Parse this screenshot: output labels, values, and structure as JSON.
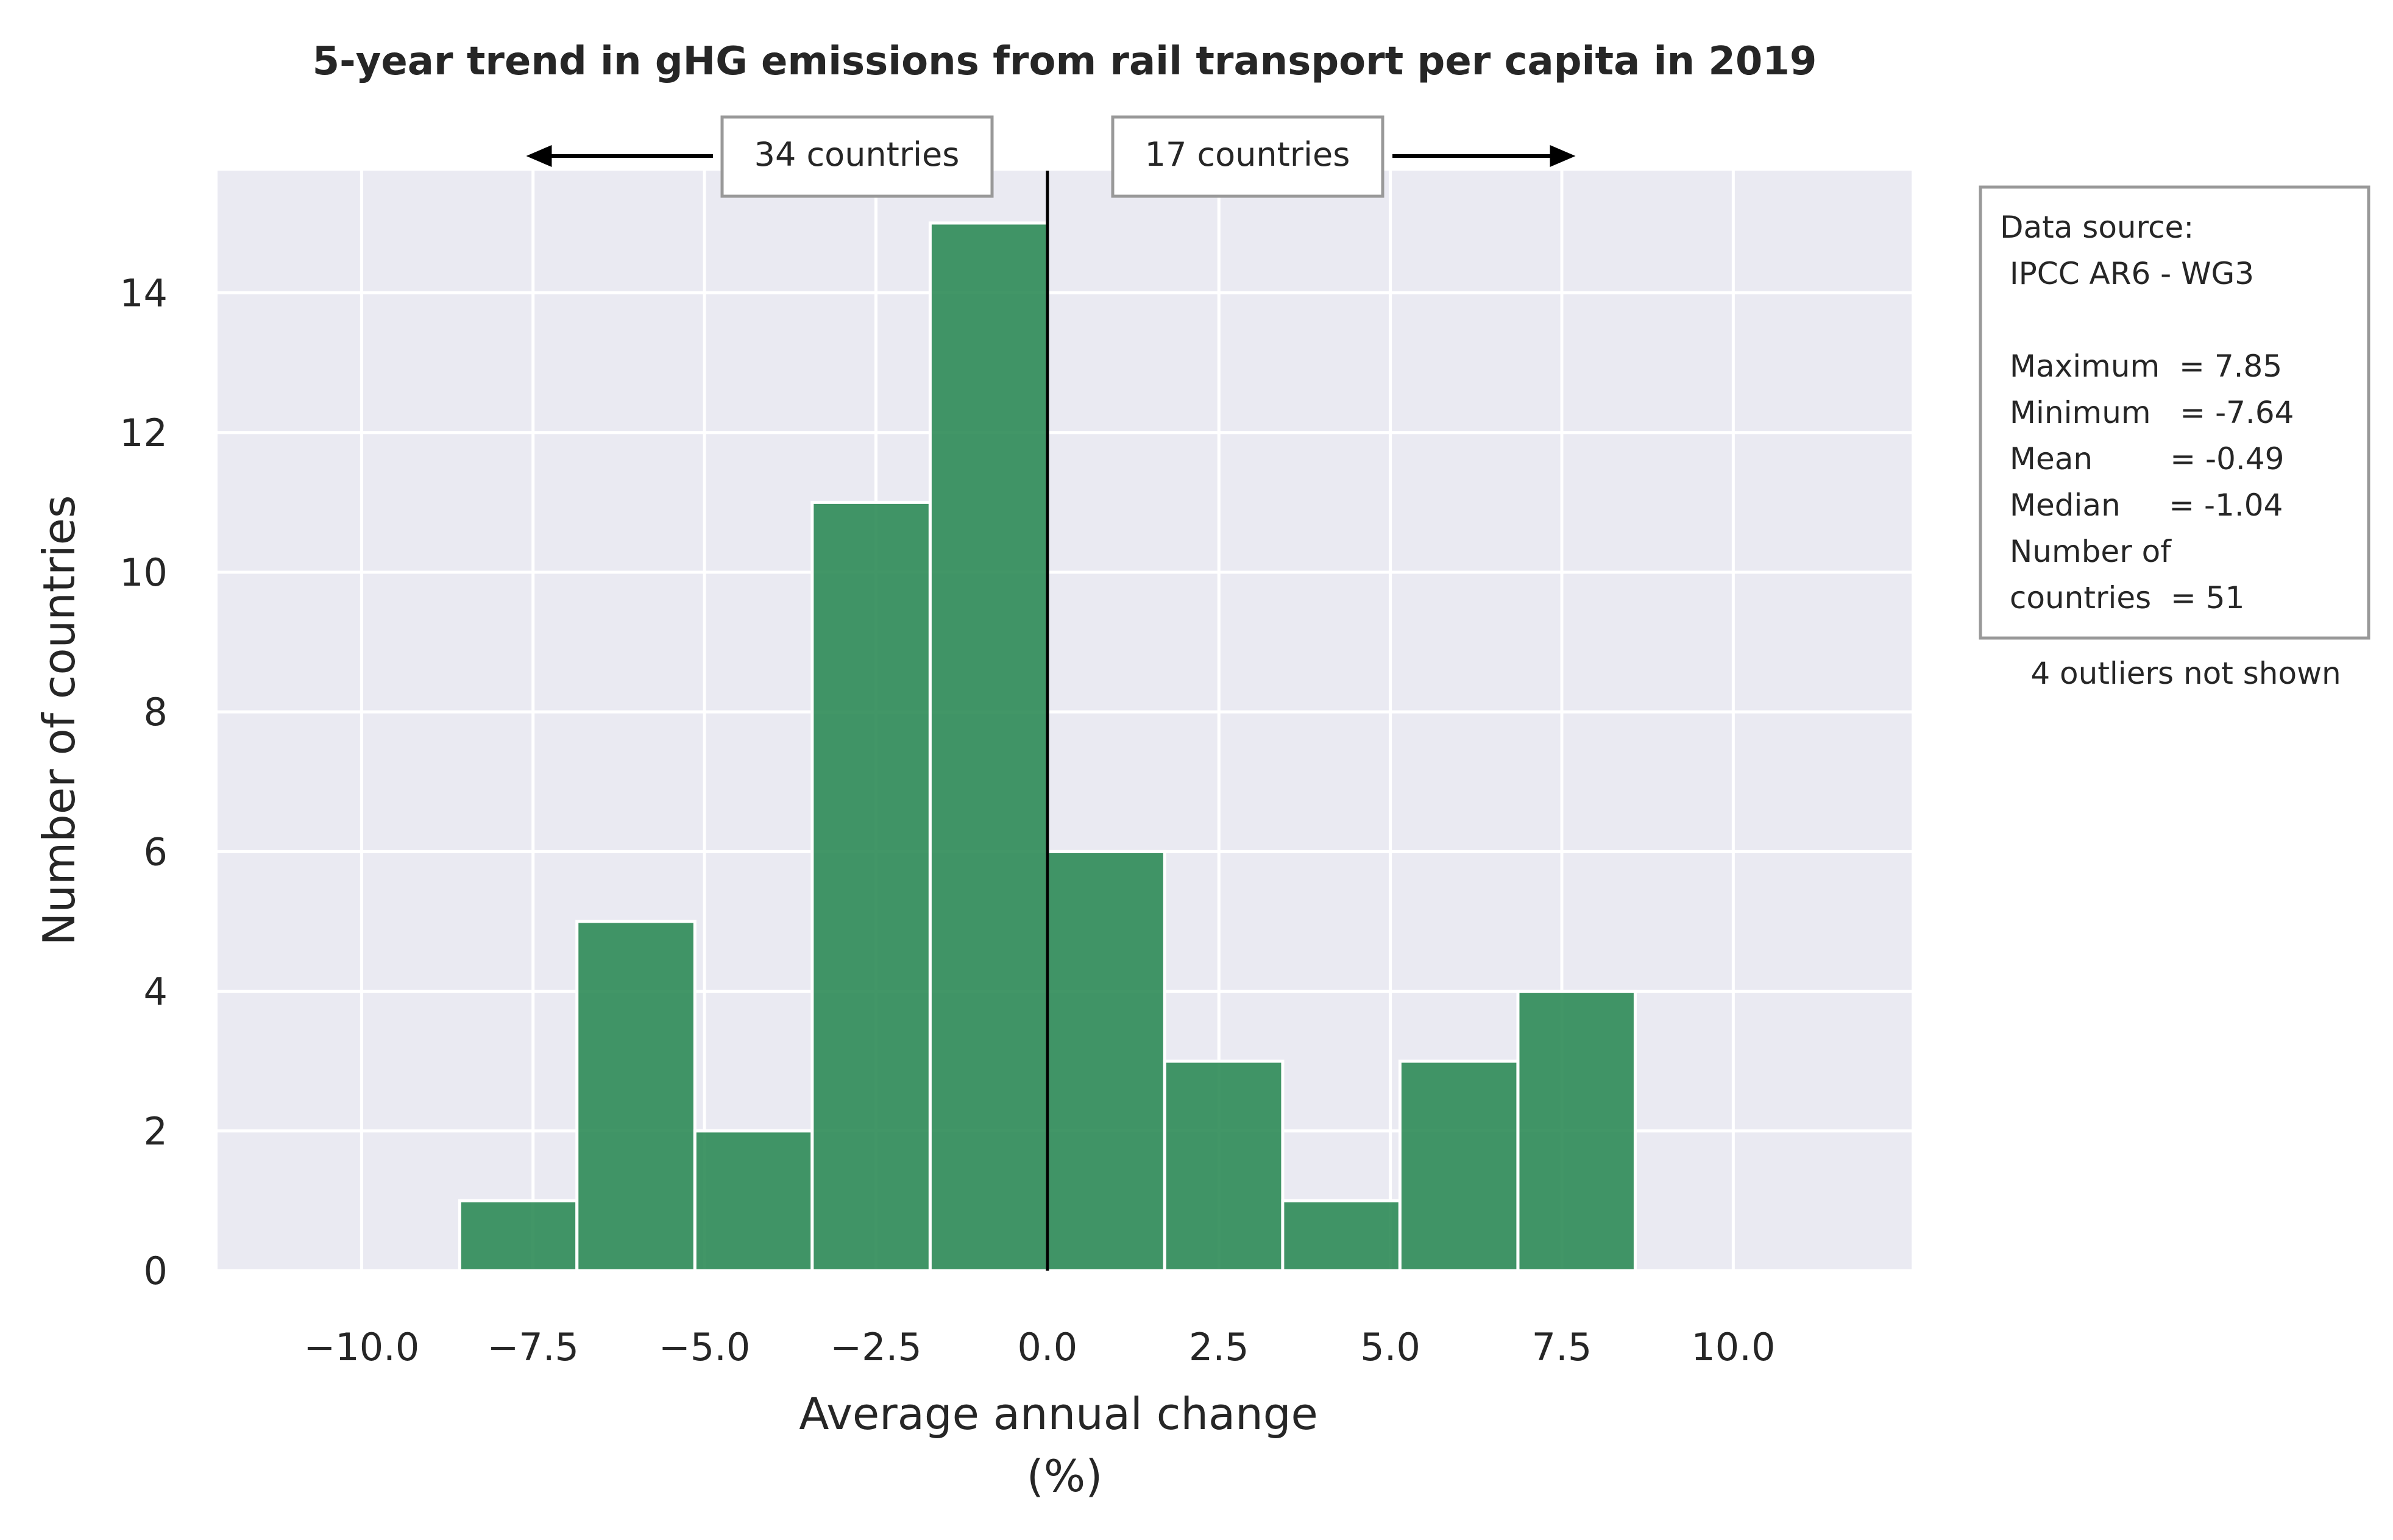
{
  "chart_data": {
    "type": "bar",
    "title": "5-year trend in gHG emissions from rail transport per capita in 2019",
    "xlabel": "Average annual change",
    "xlabel_unit": "(%)",
    "ylabel": "Number of countries",
    "xlim": [
      -12.1,
      12.6
    ],
    "ylim": [
      0,
      15.75
    ],
    "xticks": [
      -10.0,
      -7.5,
      -5.0,
      -2.5,
      0.0,
      2.5,
      5.0,
      7.5,
      10.0
    ],
    "xtick_labels": [
      "−10.0",
      "−7.5",
      "−5.0",
      "−2.5",
      "0.0",
      "2.5",
      "5.0",
      "7.5",
      "10.0"
    ],
    "yticks": [
      0,
      2,
      4,
      6,
      8,
      10,
      12,
      14
    ],
    "ytick_labels": [
      "0",
      "2",
      "4",
      "6",
      "8",
      "10",
      "12",
      "14"
    ],
    "grid": true,
    "bins": [
      {
        "x0": -8.57,
        "x1": -6.86,
        "count": 1
      },
      {
        "x0": -6.86,
        "x1": -5.14,
        "count": 5
      },
      {
        "x0": -5.14,
        "x1": -3.43,
        "count": 2
      },
      {
        "x0": -3.43,
        "x1": -1.71,
        "count": 11
      },
      {
        "x0": -1.71,
        "x1": 0.0,
        "count": 15
      },
      {
        "x0": 0.0,
        "x1": 1.71,
        "count": 6
      },
      {
        "x0": 1.71,
        "x1": 3.43,
        "count": 3
      },
      {
        "x0": 3.43,
        "x1": 5.14,
        "count": 1
      },
      {
        "x0": 5.14,
        "x1": 6.86,
        "count": 3
      },
      {
        "x0": 6.86,
        "x1": 8.57,
        "count": 4
      }
    ],
    "reference_line_x": 0.0,
    "annotations": {
      "left_count": "34 countries",
      "right_count": "17 countries",
      "left_arrow_to_x": -7.6,
      "right_arrow_to_x": 7.7
    },
    "colors": {
      "bar": "#2e8b57",
      "bar_edge": "#ffffff",
      "plot_bg": "#eaeaf2",
      "grid": "#ffffff",
      "box_border": "#999999"
    }
  },
  "stats_box": {
    "lines": [
      "Data source:",
      " IPCC AR6 - WG3",
      "",
      " Maximum  = 7.85",
      " Minimum   = -7.64",
      " Mean        = -0.49",
      " Median     = -1.04",
      " Number of",
      " countries  = 51"
    ],
    "note": "4 outliers not shown"
  }
}
